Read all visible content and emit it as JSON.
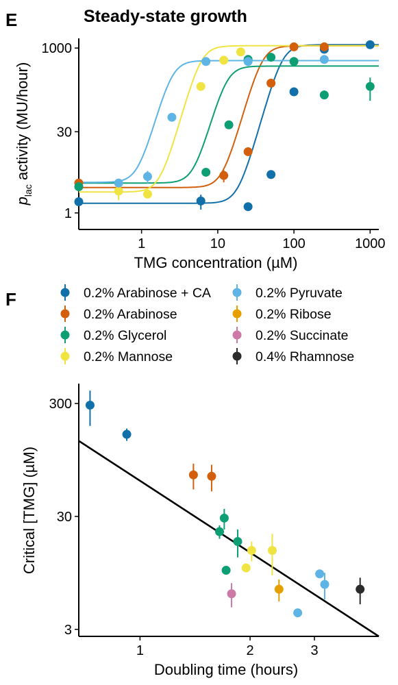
{
  "panel_e_letter": "E",
  "panel_f_letter": "F",
  "colors": {
    "0.2% Arabinose + CA": "#1170aa",
    "0.2% Arabinose": "#d35f0c",
    "0.2% Glycerol": "#0e9e74",
    "0.2% Mannose": "#f0e442",
    "0.2% Pyruvate": "#5db4e5",
    "0.2% Ribose": "#e69f00",
    "0.2% Succinate": "#cc79a7",
    "0.4% Rhamnose": "#2b2b2b"
  },
  "legend": {
    "entries": [
      "0.2% Arabinose + CA",
      "0.2% Arabinose",
      "0.2% Glycerol",
      "0.2% Mannose",
      "0.2% Pyruvate",
      "0.2% Ribose",
      "0.2% Succinate",
      "0.4% Rhamnose"
    ]
  },
  "chart_data": [
    {
      "id": "E",
      "type": "scatter",
      "title": "Steady-state growth",
      "xlabel": "TMG concentration (µM)",
      "ylabel_main": "p",
      "ylabel_sub": "lac",
      "ylabel_rest": " activity (MU/hour)",
      "xscale": "log",
      "yscale": "log",
      "xlim": [
        0.15,
        1300
      ],
      "ylim": [
        0.5,
        1500
      ],
      "xticks": [
        1,
        10,
        100,
        1000
      ],
      "xtick_labels": [
        "1",
        "10",
        "100",
        "1000"
      ],
      "yticks": [
        1,
        30,
        1000
      ],
      "ytick_labels": [
        "1",
        "30",
        "1000"
      ],
      "series": [
        {
          "name": "0.2% Arabinose + CA",
          "points": [
            [
              0.15,
              1.6,
              0
            ],
            [
              6,
              1.65,
              0.5
            ],
            [
              25,
              1.3,
              0.2
            ],
            [
              50,
              5,
              0.4
            ],
            [
              100,
              160,
              0
            ],
            [
              250,
              950,
              0
            ],
            [
              1000,
              1150,
              0
            ]
          ],
          "fit": {
            "base": 1.5,
            "top": 1150,
            "k": 70,
            "n": 5
          }
        },
        {
          "name": "0.2% Arabinose",
          "points": [
            [
              0.15,
              3.5,
              0
            ],
            [
              12,
              4.8,
              1.2
            ],
            [
              25,
              13,
              0
            ],
            [
              50,
              230,
              0
            ],
            [
              100,
              1050,
              0
            ],
            [
              250,
              1050,
              0
            ]
          ],
          "fit": {
            "base": 2.9,
            "top": 1100,
            "k": 38,
            "n": 5
          }
        },
        {
          "name": "0.2% Glycerol",
          "points": [
            [
              0.15,
              3.0,
              0
            ],
            [
              7,
              5.5,
              0
            ],
            [
              14,
              40,
              0
            ],
            [
              25,
              620,
              0
            ],
            [
              50,
              680,
              0
            ],
            [
              100,
              570,
              0
            ],
            [
              250,
              140,
              0
            ],
            [
              1000,
              200,
              90
            ]
          ],
          "fit": {
            "base": 3.5,
            "top": 470,
            "k": 13,
            "n": 5
          }
        },
        {
          "name": "0.2% Mannose",
          "points": [
            [
              0.5,
              2.5,
              0.8
            ],
            [
              1.2,
              2.2,
              0
            ],
            [
              6,
              200,
              0
            ],
            [
              12,
              600,
              0
            ],
            [
              20,
              850,
              0
            ]
          ],
          "fit": {
            "base": 2.4,
            "top": 1100,
            "k": 6,
            "n": 5
          }
        },
        {
          "name": "0.2% Pyruvate",
          "points": [
            [
              0.5,
              3.5,
              0
            ],
            [
              1.2,
              4.6,
              1.2
            ],
            [
              2.5,
              55,
              0
            ],
            [
              7,
              570,
              0
            ],
            [
              25,
              570,
              0
            ],
            [
              250,
              620,
              0
            ]
          ],
          "fit": {
            "base": 3.6,
            "top": 590,
            "k": 2.5,
            "n": 5
          }
        }
      ]
    },
    {
      "id": "F",
      "type": "scatter",
      "xlabel": "Doubling time (hours)",
      "ylabel": "Critical [TMG] (µM)",
      "xscale": "log",
      "yscale": "log",
      "xlim": [
        0.68,
        4.5
      ],
      "ylim": [
        2.6,
        450
      ],
      "xticks": [
        1,
        2,
        3
      ],
      "xtick_labels": [
        "1",
        "2",
        "3"
      ],
      "yticks": [
        3,
        30,
        300
      ],
      "ytick_labels": [
        "3",
        "30",
        "300"
      ],
      "series": [
        {
          "name": "0.2% Arabinose + CA",
          "points": [
            [
              0.73,
              290,
              100
            ],
            [
              0.92,
              160,
              20
            ]
          ]
        },
        {
          "name": "0.2% Arabinose",
          "points": [
            [
              1.4,
              70,
              18
            ],
            [
              1.57,
              68,
              18
            ]
          ]
        },
        {
          "name": "0.2% Glycerol",
          "points": [
            [
              1.7,
              29,
              6
            ],
            [
              1.65,
              22,
              3
            ],
            [
              1.85,
              18,
              5
            ],
            [
              1.72,
              10,
              0
            ]
          ]
        },
        {
          "name": "0.2% Mannose",
          "points": [
            [
              2.02,
              15,
              3
            ],
            [
              2.3,
              15,
              6
            ],
            [
              1.95,
              10.5,
              0
            ]
          ]
        },
        {
          "name": "0.2% Pyruvate",
          "points": [
            [
              3.1,
              9.3,
              0
            ],
            [
              3.2,
              7.5,
              2
            ],
            [
              2.7,
              4.2,
              0
            ]
          ]
        },
        {
          "name": "0.2% Ribose",
          "points": [
            [
              2.4,
              6.8,
              1.5
            ]
          ]
        },
        {
          "name": "0.2% Succinate",
          "points": [
            [
              1.78,
              6.2,
              1.5
            ]
          ]
        },
        {
          "name": "0.4% Rhamnose",
          "points": [
            [
              4.0,
              6.8,
              1.8
            ]
          ]
        }
      ],
      "fit_line": {
        "x": [
          0.68,
          4.5
        ],
        "y": [
          140,
          2.6
        ]
      }
    }
  ]
}
